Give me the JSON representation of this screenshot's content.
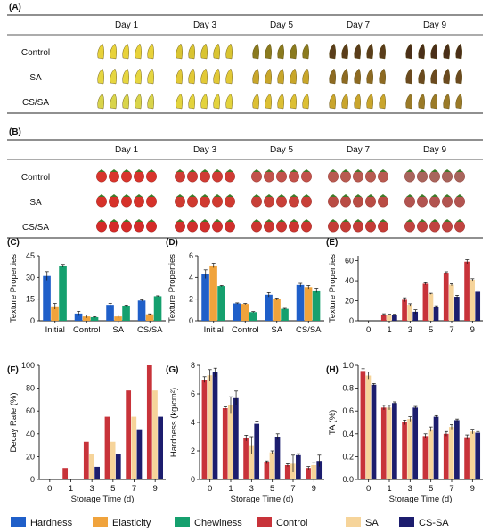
{
  "panelA": {
    "label": "(A)",
    "days": [
      "Day 1",
      "Day 3",
      "Day 5",
      "Day 7",
      "Day 9"
    ],
    "rows": [
      "Control",
      "SA",
      "CS/SA"
    ]
  },
  "panelB": {
    "label": "(B)",
    "days": [
      "Day 1",
      "Day 3",
      "Day 5",
      "Day 7",
      "Day 9"
    ],
    "rows": [
      "Control",
      "SA",
      "CS/SA"
    ]
  },
  "chart_data": [
    {
      "panel": "(C)",
      "type": "bar",
      "categories": [
        "Initial",
        "Control",
        "SA",
        "CS/SA"
      ],
      "ylabel": "Texture Properties",
      "xlabel": "",
      "ylim": [
        0,
        45
      ],
      "yticks": [
        0,
        15,
        30,
        45
      ],
      "series": [
        {
          "name": "Hardness",
          "values": [
            31,
            5,
            11,
            14
          ],
          "errors": [
            3,
            1.5,
            1,
            0.5
          ]
        },
        {
          "name": "Elasticity",
          "values": [
            10,
            3,
            3,
            4.5
          ],
          "errors": [
            2,
            1,
            1,
            0.3
          ]
        },
        {
          "name": "Chewiness",
          "values": [
            38,
            2.5,
            10.5,
            17
          ],
          "errors": [
            1,
            0.3,
            0.3,
            0.3
          ]
        }
      ]
    },
    {
      "panel": "(D)",
      "type": "bar",
      "categories": [
        "Initial",
        "Control",
        "SA",
        "CS/SA"
      ],
      "ylabel": "Texture Properties",
      "xlabel": "",
      "ylim": [
        0,
        6
      ],
      "yticks": [
        0,
        2,
        4,
        6
      ],
      "series": [
        {
          "name": "Hardness",
          "values": [
            4.3,
            1.6,
            2.4,
            3.3
          ],
          "errors": [
            0.4,
            0.05,
            0.2,
            0.15
          ]
        },
        {
          "name": "Elasticity",
          "values": [
            5.1,
            1.55,
            2.0,
            3.1
          ],
          "errors": [
            0.2,
            0.05,
            0.1,
            0.15
          ]
        },
        {
          "name": "Chewiness",
          "values": [
            3.2,
            0.8,
            1.1,
            2.8
          ],
          "errors": [
            0.05,
            0.05,
            0.05,
            0.2
          ]
        }
      ]
    },
    {
      "panel": "(E)",
      "type": "bar",
      "categories": [
        "0",
        "1",
        "3",
        "5",
        "7",
        "9"
      ],
      "ylabel": "Texture Properties",
      "xlabel": "",
      "ylim": [
        0,
        65
      ],
      "yticks": [
        0,
        20,
        40,
        60
      ],
      "series": [
        {
          "name": "Control",
          "values": [
            null,
            6,
            21,
            37,
            48,
            59
          ],
          "errors": [
            0,
            1,
            2,
            1,
            1,
            2
          ]
        },
        {
          "name": "SA",
          "values": [
            null,
            6,
            16,
            27,
            36,
            41
          ],
          "errors": [
            0,
            0.5,
            1,
            0.5,
            1,
            1
          ]
        },
        {
          "name": "CS-SA",
          "values": [
            null,
            6,
            9,
            14,
            24,
            29
          ],
          "errors": [
            0,
            0.5,
            2,
            1,
            1.5,
            1
          ]
        }
      ]
    },
    {
      "panel": "(F)",
      "type": "bar",
      "categories": [
        "0",
        "1",
        "3",
        "5",
        "7",
        "9"
      ],
      "ylabel": "Decay Rate (%)",
      "xlabel": "Storage Time (d)",
      "ylim": [
        0,
        100
      ],
      "yticks": [
        0,
        20,
        40,
        60,
        80,
        100
      ],
      "series": [
        {
          "name": "Control",
          "values": [
            null,
            10,
            33,
            55,
            78,
            100
          ],
          "errors": [
            0,
            0,
            0,
            0,
            0,
            0
          ]
        },
        {
          "name": "SA",
          "values": [
            null,
            0,
            22,
            33,
            55,
            78
          ],
          "errors": [
            0,
            0,
            0,
            0,
            0,
            0
          ]
        },
        {
          "name": "CS-SA",
          "values": [
            null,
            0,
            11,
            22,
            44,
            55
          ],
          "errors": [
            0,
            0,
            0,
            0,
            0,
            0
          ]
        }
      ]
    },
    {
      "panel": "(G)",
      "type": "bar",
      "categories": [
        "0",
        "1",
        "3",
        "5",
        "7",
        "9"
      ],
      "ylabel": "Hardness (kg/cm²)",
      "xlabel": "Storage Time (d)",
      "ylim": [
        0,
        8
      ],
      "yticks": [
        0,
        2,
        4,
        6,
        8
      ],
      "series": [
        {
          "name": "Control",
          "values": [
            7.0,
            5.0,
            2.9,
            1.2,
            1.0,
            0.8
          ],
          "errors": [
            0.2,
            0.1,
            0.2,
            0.1,
            0.1,
            0.1
          ]
        },
        {
          "name": "SA",
          "values": [
            7.3,
            5.2,
            2.4,
            1.9,
            1.1,
            1.0
          ],
          "errors": [
            0.4,
            0.6,
            0.6,
            0.1,
            0.6,
            0.2
          ]
        },
        {
          "name": "CS-SA",
          "values": [
            7.5,
            5.7,
            3.9,
            3.0,
            1.7,
            1.3
          ],
          "errors": [
            0.3,
            0.5,
            0.2,
            0.2,
            0.1,
            0.4
          ]
        }
      ]
    },
    {
      "panel": "(H)",
      "type": "bar",
      "categories": [
        "0",
        "1",
        "3",
        "5",
        "7",
        "9"
      ],
      "ylabel": "TA (%)",
      "xlabel": "Storage Time (d)",
      "ylim": [
        0,
        1.0
      ],
      "yticks": [
        0,
        0.2,
        0.4,
        0.6,
        0.8,
        1.0
      ],
      "ytickLabels": [
        "0.0",
        "0.2",
        "0.4",
        "0.6",
        "0.8",
        "1.0"
      ],
      "series": [
        {
          "name": "Control",
          "values": [
            0.95,
            0.63,
            0.5,
            0.38,
            0.4,
            0.37
          ],
          "errors": [
            0.02,
            0.02,
            0.02,
            0.02,
            0.02,
            0.02
          ]
        },
        {
          "name": "SA",
          "values": [
            0.91,
            0.63,
            0.53,
            0.44,
            0.46,
            0.42
          ],
          "errors": [
            0.03,
            0.02,
            0.02,
            0.02,
            0.02,
            0.02
          ]
        },
        {
          "name": "CS-SA",
          "values": [
            0.83,
            0.67,
            0.63,
            0.55,
            0.52,
            0.41
          ],
          "errors": [
            0.01,
            0.01,
            0.01,
            0.01,
            0.01,
            0.01
          ]
        }
      ]
    }
  ],
  "legend": {
    "items": [
      {
        "name": "Hardness",
        "color": "#1f5fc9"
      },
      {
        "name": "Elasticity",
        "color": "#f0a33c"
      },
      {
        "name": "Chewiness",
        "color": "#15a06e"
      },
      {
        "name": "Control",
        "color": "#c8333a"
      },
      {
        "name": "SA",
        "color": "#f6d49a"
      },
      {
        "name": "CS-SA",
        "color": "#1c1d6e"
      }
    ]
  },
  "colors": {
    "Hardness": "#1f5fc9",
    "Elasticity": "#f0a33c",
    "Chewiness": "#15a06e",
    "Control": "#c8333a",
    "SA": "#f6d49a",
    "CS-SA": "#1c1d6e"
  }
}
